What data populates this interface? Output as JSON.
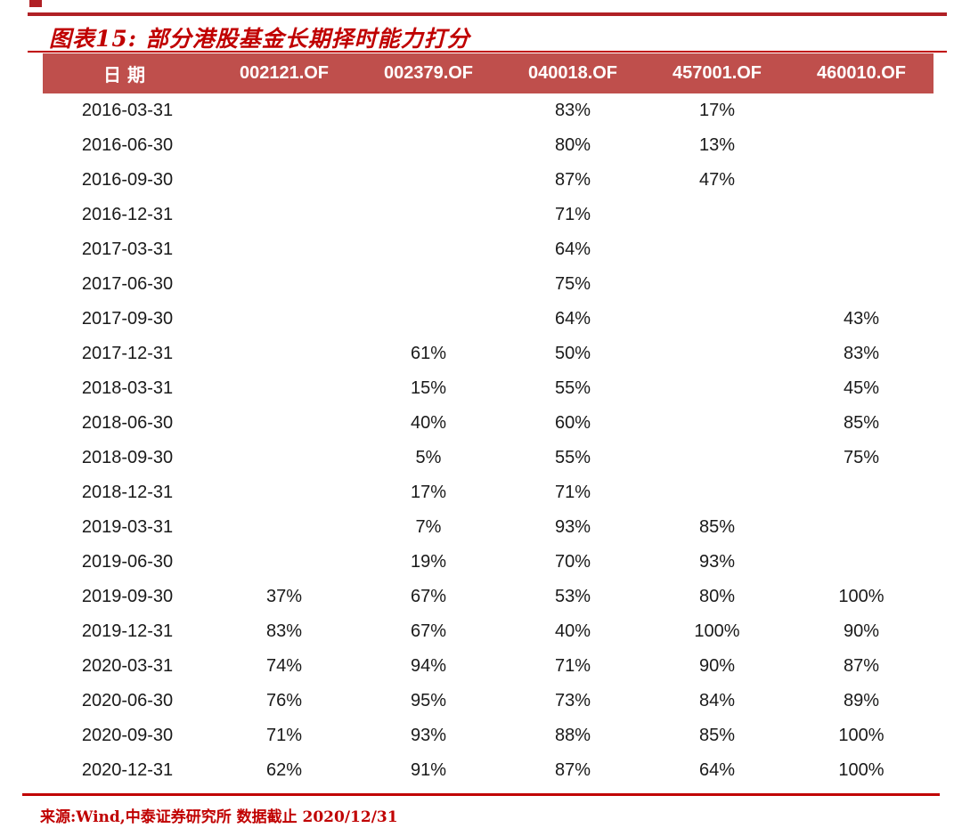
{
  "title": {
    "prefix": "图表15:",
    "text": "部分港股基金长期择时能力打分"
  },
  "footer": {
    "source": "来源:Wind,中泰证券研究所 数据截止 2020/12/31"
  },
  "colors": {
    "accent_red": "#C00000",
    "rule_red": "#B02025",
    "header_bg": "#BF4F4C",
    "header_text": "#FFFFFF",
    "body_text": "#1A1A1A"
  },
  "chart_data": {
    "type": "table",
    "title": "图表15: 部分港股基金长期择时能力打分",
    "columns": [
      "日期",
      "002121.OF",
      "002379.OF",
      "040018.OF",
      "457001.OF",
      "460010.OF"
    ],
    "rows": [
      [
        "2016-03-31",
        "",
        "",
        "83%",
        "17%",
        ""
      ],
      [
        "2016-06-30",
        "",
        "",
        "80%",
        "13%",
        ""
      ],
      [
        "2016-09-30",
        "",
        "",
        "87%",
        "47%",
        ""
      ],
      [
        "2016-12-31",
        "",
        "",
        "71%",
        "",
        ""
      ],
      [
        "2017-03-31",
        "",
        "",
        "64%",
        "",
        ""
      ],
      [
        "2017-06-30",
        "",
        "",
        "75%",
        "",
        ""
      ],
      [
        "2017-09-30",
        "",
        "",
        "64%",
        "",
        "43%"
      ],
      [
        "2017-12-31",
        "",
        "61%",
        "50%",
        "",
        "83%"
      ],
      [
        "2018-03-31",
        "",
        "15%",
        "55%",
        "",
        "45%"
      ],
      [
        "2018-06-30",
        "",
        "40%",
        "60%",
        "",
        "85%"
      ],
      [
        "2018-09-30",
        "",
        "5%",
        "55%",
        "",
        "75%"
      ],
      [
        "2018-12-31",
        "",
        "17%",
        "71%",
        "",
        ""
      ],
      [
        "2019-03-31",
        "",
        "7%",
        "93%",
        "85%",
        ""
      ],
      [
        "2019-06-30",
        "",
        "19%",
        "70%",
        "93%",
        ""
      ],
      [
        "2019-09-30",
        "37%",
        "67%",
        "53%",
        "80%",
        "100%"
      ],
      [
        "2019-12-31",
        "83%",
        "67%",
        "40%",
        "100%",
        "90%"
      ],
      [
        "2020-03-31",
        "74%",
        "94%",
        "71%",
        "90%",
        "87%"
      ],
      [
        "2020-06-30",
        "76%",
        "95%",
        "73%",
        "84%",
        "89%"
      ],
      [
        "2020-09-30",
        "71%",
        "93%",
        "88%",
        "85%",
        "100%"
      ],
      [
        "2020-12-31",
        "62%",
        "91%",
        "87%",
        "64%",
        "100%"
      ]
    ],
    "source_note": "来源:Wind,中泰证券研究所 数据截止 2020/12/31",
    "layout": {
      "grid": false,
      "header_background": "#BF4F4C",
      "value_format": "percent"
    }
  }
}
